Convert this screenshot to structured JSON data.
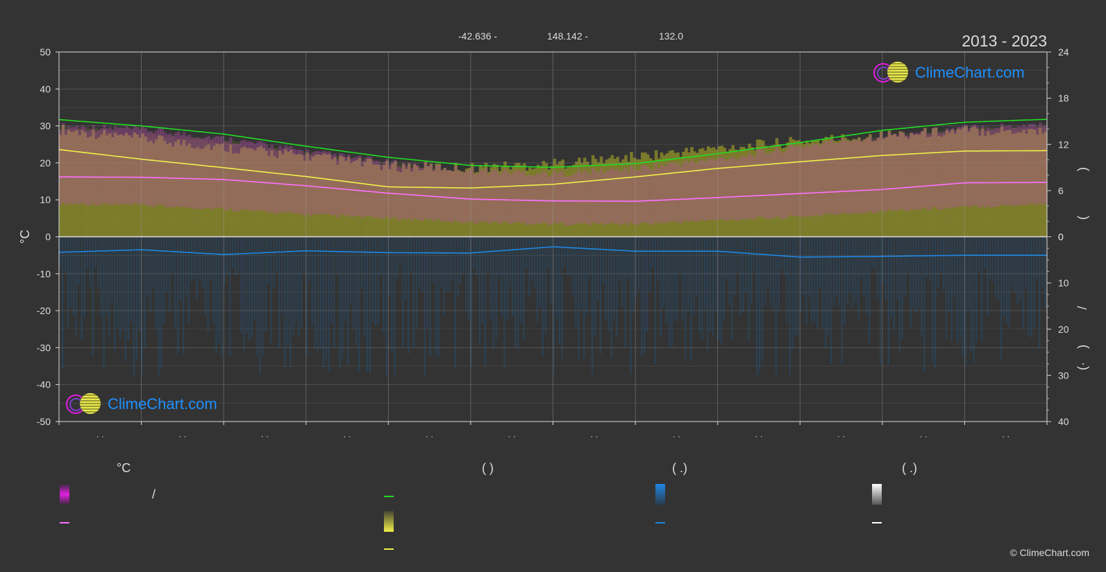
{
  "header": {
    "coords": [
      "-42.636 -",
      "148.142 -",
      "132.0"
    ],
    "period": "2013 - 2023"
  },
  "logo": {
    "text": "ClimeChart.com"
  },
  "copyright": "© ClimeChart.com",
  "legend": {
    "headers": [
      "°C",
      "(            )",
      "(    .)",
      "(    .)"
    ],
    "slash": "/"
  },
  "colors": {
    "background": "#333333",
    "temp_range": "#e020e0",
    "temp_mean": "#ff70ff",
    "daylight": "#22dd22",
    "sunshine": "#f0f04a",
    "precip": "#1e88e5",
    "snow": "#ffffff"
  },
  "chart_data": {
    "type": "line",
    "x": [
      0,
      1,
      2,
      3,
      4,
      5,
      6,
      7,
      8,
      9,
      10,
      11,
      12
    ],
    "month_ticks": [
      "· ·",
      "· ·",
      "· ·",
      "· ·",
      "· ·",
      "· ·",
      "· ·",
      "· ·",
      "· ·",
      "· ·",
      "· ·",
      "· ·"
    ],
    "ylabel": "°C",
    "ylim": [
      -50,
      50
    ],
    "yticks": [
      50,
      40,
      30,
      20,
      10,
      0,
      -10,
      -20,
      -30,
      -40,
      -50
    ],
    "y2_upper": {
      "label_chars": [
        ")",
        "("
      ],
      "ticks": [
        24,
        18,
        12,
        6,
        0
      ],
      "range": [
        0,
        24
      ]
    },
    "y2_lower": {
      "label_chars": [
        "/",
        ")",
        "(·"
      ],
      "ticks": [
        0,
        10,
        20,
        30,
        40
      ],
      "range": [
        0,
        40
      ]
    },
    "grid": true,
    "series": [
      {
        "key": "daylight",
        "values": [
          31.7,
          30.0,
          27.8,
          24.5,
          21.5,
          19.3,
          18.8,
          19.8,
          22.5,
          25.5,
          28.8,
          31.0,
          31.8
        ]
      },
      {
        "key": "sunshine",
        "values": [
          23.6,
          21.0,
          18.7,
          16.3,
          13.5,
          13.2,
          14.2,
          16.2,
          18.5,
          20.3,
          22.0,
          23.2,
          23.3
        ]
      },
      {
        "key": "temp_mean",
        "values": [
          16.2,
          16.1,
          15.5,
          13.8,
          11.8,
          10.2,
          9.7,
          9.6,
          10.6,
          11.7,
          12.8,
          14.6,
          14.7
        ]
      },
      {
        "key": "precip_mean",
        "values": [
          -4.2,
          -3.5,
          -4.8,
          -3.8,
          -4.3,
          -4.4,
          -2.7,
          -3.9,
          -3.9,
          -5.5,
          -5.3,
          -5.0,
          -5.0
        ]
      }
    ],
    "temp_max_band": [
      29.0,
      28.0,
      25.5,
      22.0,
      19.0,
      17.0,
      16.0,
      17.5,
      20.0,
      23.5,
      26.5,
      28.5,
      29.5
    ],
    "temp_min_band": [
      8.5,
      8.0,
      7.0,
      5.5,
      4.5,
      3.5,
      3.0,
      3.0,
      4.0,
      5.0,
      6.5,
      7.5,
      8.5
    ]
  }
}
